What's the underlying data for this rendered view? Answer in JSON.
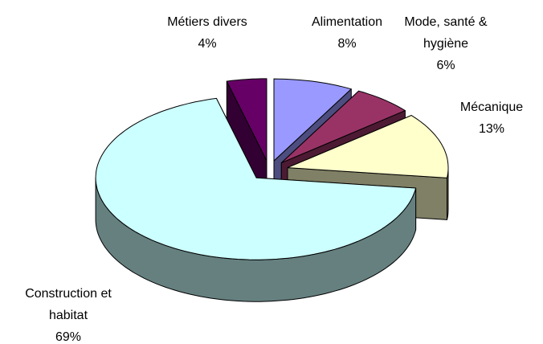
{
  "chart_data": {
    "type": "pie",
    "categories": [
      "Alimentation",
      "Mode, santé & hygiène",
      "Mécanique",
      "Construction et habitat",
      "Métiers divers"
    ],
    "values": [
      8,
      6,
      13,
      69,
      4
    ],
    "value_labels": [
      "8%",
      "6%",
      "13%",
      "69%",
      "4%"
    ],
    "colors": [
      "#9999ff",
      "#993366",
      "#ffffcc",
      "#ccffff",
      "#660066"
    ]
  }
}
